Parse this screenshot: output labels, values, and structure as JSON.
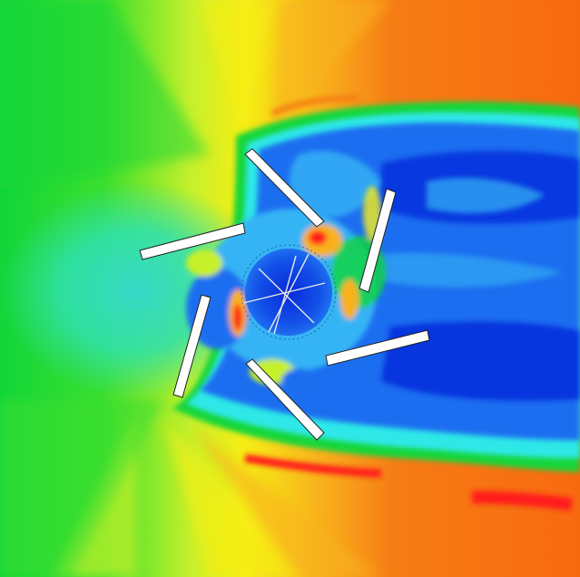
{
  "figure": {
    "subject": "rotor-flow-contour",
    "blade_count": 6,
    "hub_spoke_count": 4,
    "palette": {
      "very_low": "#0022d8",
      "low": "#1f6ef0",
      "low_mid": "#36b4f5",
      "mid": "#2ee8e8",
      "mid_high": "#12d63a",
      "high": "#c6f02b",
      "yellow": "#f6ee15",
      "orange_light": "#f8b21c",
      "orange": "#f67c15",
      "red": "#ff1a1a",
      "blade": "#ffffff",
      "blade_edge": "#202020",
      "spoke": "#e8e8e8"
    }
  }
}
